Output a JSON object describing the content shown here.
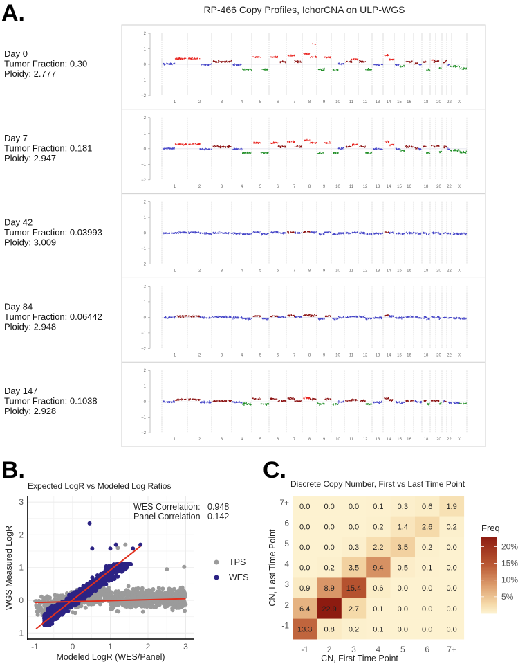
{
  "panel_labels": {
    "a": "A.",
    "b": "B.",
    "c": "C."
  },
  "chart_data": [
    {
      "type": "scatter",
      "id": "copy_profiles",
      "title": "RP-466 Copy Profiles, IchorCNA on ULP-WGS",
      "ylim": [
        -2,
        2
      ],
      "yticks": [
        "2",
        "1",
        "0",
        "−1",
        "−2"
      ],
      "chromosome_labels": [
        "1",
        "2",
        "3",
        "4",
        "5",
        "6",
        "7",
        "8",
        "9",
        "10",
        "11",
        "12",
        "13",
        "14",
        "15",
        "16",
        "",
        "18",
        "",
        "20",
        "",
        "22",
        "X"
      ],
      "colors": {
        "gain_high": "#e8231f",
        "gain_low": "#8b1212",
        "neutral": "#4646c8",
        "loss": "#24902a",
        "divider": "#c8c8c8"
      },
      "day0_segment_levels": [
        [
          0.05,
          0.4
        ],
        [
          0.4,
          0.0
        ],
        [
          0.2,
          0.2
        ],
        [
          0.0,
          -0.3
        ],
        [
          0.5,
          -0.3
        ],
        [
          0.5,
          0.2
        ],
        [
          0.6,
          0.2
        ],
        [
          0.7,
          0.5
        ],
        [
          -0.3,
          0.5
        ],
        [
          -0.3,
          0.05
        ],
        [
          0.2,
          0.35
        ],
        [
          0.2,
          -0.3
        ],
        [
          0.0,
          0.0
        ],
        [
          0.6,
          0.35
        ],
        [
          0.0,
          -0.1
        ],
        [
          0.2,
          0.2
        ],
        [
          0.1,
          0.0
        ],
        [
          0.2,
          -0.3
        ],
        [
          0.3,
          0.2
        ],
        [
          0.25,
          -0.2
        ],
        [
          0.15,
          0.2
        ],
        [
          0.0,
          -0.1
        ],
        [
          -0.1,
          -0.25
        ]
      ],
      "rows": [
        {
          "day": "Day 0",
          "tumor_fraction": "Tumor Fraction: 0.30",
          "ploidy": "Ploidy: 2.777",
          "amplitude": 1.0
        },
        {
          "day": "Day 7",
          "tumor_fraction": "Tumor Fraction: 0.181",
          "ploidy": "Ploidy: 2.947",
          "amplitude": 0.8
        },
        {
          "day": "Day 42",
          "tumor_fraction": "Tumor Fraction: 0.03993",
          "ploidy": "Ploidy: 3.009",
          "amplitude": 0.15
        },
        {
          "day": "Day 84",
          "tumor_fraction": "Tumor Fraction: 0.06442",
          "ploidy": "Ploidy: 2.948",
          "amplitude": 0.22
        },
        {
          "day": "Day 147",
          "tumor_fraction": "Tumor Fraction: 0.1038",
          "ploidy": "Ploidy: 2.928",
          "amplitude": 0.4
        }
      ]
    },
    {
      "type": "scatter",
      "id": "logr_scatter",
      "title": "Expected LogR vs Modeled Log Ratios",
      "xlabel": "Modeled LogR (WES/Panel)",
      "ylabel": "WGS Measured LogR",
      "xlim": [
        -1,
        3
      ],
      "ylim": [
        -1,
        3
      ],
      "xticks": [
        "-1",
        "0",
        "1",
        "2",
        "3"
      ],
      "yticks": [
        "-1",
        "0",
        "1",
        "2",
        "3"
      ],
      "annotations": [
        {
          "label": "WES Correlation:",
          "value": "0.948"
        },
        {
          "label": "Panel Correlation",
          "value": "0.142"
        }
      ],
      "legend": [
        {
          "name": "TPS",
          "color": "#9b9b9b"
        },
        {
          "name": "WES",
          "color": "#2c2384"
        }
      ],
      "legend_position": "right",
      "fit_lines": [
        {
          "series": "WES",
          "x": [
            -0.97,
            1.8
          ],
          "y": [
            -0.87,
            1.65
          ],
          "color": "#e0301e"
        },
        {
          "series": "TPS",
          "x": [
            -1,
            3
          ],
          "y": [
            -0.07,
            0.05
          ],
          "color": "#e0301e"
        }
      ],
      "outliers": {
        "WES": [
          [
            0.45,
            2.35
          ],
          [
            0.52,
            1.58
          ],
          [
            1.15,
            1.7
          ],
          [
            1.6,
            1.58
          ],
          [
            1.8,
            1.7
          ],
          [
            1.0,
            1.58
          ]
        ],
        "TPS": [
          [
            1.2,
            1.6
          ],
          [
            1.4,
            1.7
          ],
          [
            2.96,
            1.02
          ],
          [
            2.5,
            0.95
          ]
        ]
      }
    },
    {
      "type": "heatmap",
      "id": "cn_heatmap",
      "title": "Discrete Copy Number, First vs Last Time Point",
      "xlabel": "CN, First Time Point",
      "ylabel": "CN, Last Time Point",
      "x_categories": [
        "-1",
        "2",
        "3",
        "4",
        "5",
        "6",
        "7+"
      ],
      "y_categories_top_to_bottom": [
        "7+",
        "6",
        "5",
        "4",
        "3",
        "2",
        "-1"
      ],
      "values": [
        [
          "0.0",
          "0.0",
          "0.0",
          "0.1",
          "0.3",
          "0.6",
          "1.9"
        ],
        [
          "0.0",
          "0.0",
          "0.0",
          "0.2",
          "1.4",
          "2.6",
          "0.2"
        ],
        [
          "0.0",
          "0.0",
          "0.3",
          "2.2",
          "3.5",
          "0.2",
          "0.0"
        ],
        [
          "0.0",
          "0.2",
          "3.5",
          "9.4",
          "0.5",
          "0.1",
          "0.0"
        ],
        [
          "0.9",
          "8.9",
          "15.4",
          "0.6",
          "0.0",
          "0.0",
          "0.0"
        ],
        [
          "6.4",
          "22.9",
          "2.7",
          "0.1",
          "0.0",
          "0.0",
          "0.0"
        ],
        [
          "13.3",
          "0.8",
          "0.2",
          "0.1",
          "0.0",
          "0.0",
          "0.0"
        ]
      ],
      "legend_title": "Freq",
      "legend_ticks": [
        "20%",
        "15%",
        "10%",
        "5%"
      ],
      "legend_tick_values": [
        20,
        15,
        10,
        5
      ],
      "color_max": 23,
      "color_low": "#fdf2d0",
      "color_high": "#8c1a10"
    }
  ]
}
